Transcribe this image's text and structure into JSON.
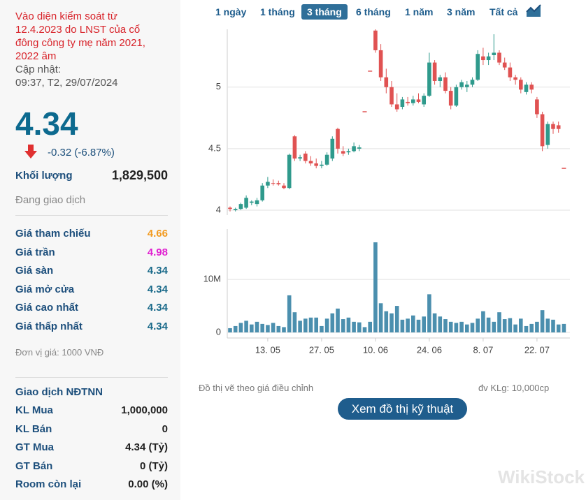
{
  "notice": "Vào diện kiểm soát từ 12.4.2023 do LNST của cổ đông công ty mẹ năm 2021, 2022 âm",
  "updated_label": "Cập nhật:",
  "updated_time": "09:37, T2, 29/07/2024",
  "price": "4.34",
  "change": "-0.32 (-6.87%)",
  "volume_label": "Khối lượng",
  "volume": "1,829,500",
  "status": "Đang giao dịch",
  "prices": [
    {
      "label": "Giá tham chiếu",
      "value": "4.66",
      "color": "#f29a1f"
    },
    {
      "label": "Giá trần",
      "value": "4.98",
      "color": "#e020d0"
    },
    {
      "label": "Giá sàn",
      "value": "4.34",
      "color": "#1a6a8a"
    },
    {
      "label": "Giá mở cửa",
      "value": "4.34",
      "color": "#1a6a8a"
    },
    {
      "label": "Giá cao nhất",
      "value": "4.34",
      "color": "#1a6a8a"
    },
    {
      "label": "Giá thấp nhất",
      "value": "4.34",
      "color": "#1a6a8a"
    }
  ],
  "unit_note": "Đơn vị giá: 1000 VNĐ",
  "foreign": {
    "title": "Giao dịch NĐTNN",
    "rows": [
      {
        "label": "KL Mua",
        "value": "1,000,000"
      },
      {
        "label": "KL Bán",
        "value": "0"
      },
      {
        "label": "GT Mua",
        "value": "4.34 (Tỷ)"
      },
      {
        "label": "GT Bán",
        "value": "0 (Tỷ)"
      },
      {
        "label": "Room còn lại",
        "value": "0.00 (%)"
      }
    ]
  },
  "tabs": {
    "items": [
      "1 ngày",
      "1 tháng",
      "3 tháng",
      "6 tháng",
      "1 năm",
      "3 năm",
      "Tất cả"
    ],
    "active": 2
  },
  "chart_data": {
    "type": "candlestick",
    "categories": [
      null,
      null,
      null,
      null,
      null,
      null,
      null,
      "13. 05",
      null,
      null,
      null,
      null,
      null,
      null,
      null,
      null,
      null,
      "27. 05",
      null,
      null,
      null,
      null,
      null,
      null,
      null,
      null,
      null,
      "10. 06",
      null,
      null,
      null,
      null,
      null,
      null,
      null,
      null,
      null,
      "24. 06",
      null,
      null,
      null,
      null,
      null,
      null,
      null,
      null,
      null,
      "8. 07",
      null,
      null,
      null,
      null,
      null,
      null,
      null,
      null,
      null,
      "22. 07",
      null,
      null,
      null,
      null,
      null
    ],
    "open": [
      4.02,
      4.0,
      4.01,
      4.02,
      4.06,
      4.05,
      4.08,
      4.2,
      4.22,
      4.22,
      4.2,
      4.18,
      4.6,
      4.42,
      4.46,
      4.4,
      4.38,
      4.36,
      4.37,
      4.42,
      4.66,
      4.48,
      4.47,
      4.48,
      4.5,
      4.8,
      5.13,
      5.46,
      5.3,
      5.08,
      5.0,
      4.86,
      4.84,
      4.88,
      4.87,
      4.9,
      4.86,
      4.93,
      5.2,
      5.05,
      5.08,
      4.97,
      4.85,
      5.0,
      5.0,
      5.02,
      5.06,
      5.25,
      5.22,
      5.26,
      5.28,
      5.2,
      5.16,
      5.08,
      5.06,
      4.96,
      5.02,
      4.9,
      4.78,
      4.53,
      4.7,
      4.69,
      4.34
    ],
    "high": [
      4.03,
      4.02,
      4.06,
      4.12,
      4.08,
      4.1,
      4.22,
      4.27,
      4.25,
      4.24,
      4.22,
      4.46,
      4.61,
      4.45,
      4.48,
      4.44,
      4.42,
      4.4,
      4.47,
      4.6,
      4.67,
      4.52,
      4.5,
      4.55,
      4.53,
      4.8,
      5.13,
      5.47,
      5.35,
      5.15,
      5.05,
      4.95,
      4.92,
      4.92,
      4.93,
      4.95,
      4.95,
      5.28,
      5.22,
      5.1,
      5.12,
      5.0,
      5.02,
      5.06,
      5.05,
      5.08,
      5.3,
      5.32,
      5.28,
      5.43,
      5.3,
      5.24,
      5.2,
      5.1,
      5.08,
      5.04,
      5.04,
      4.92,
      4.8,
      4.72,
      4.72,
      4.72,
      4.34
    ],
    "low": [
      3.99,
      3.99,
      4.0,
      4.01,
      4.04,
      4.03,
      4.07,
      4.18,
      4.2,
      4.2,
      4.17,
      4.17,
      4.4,
      4.4,
      4.38,
      4.36,
      4.34,
      4.34,
      4.36,
      4.4,
      4.46,
      4.44,
      4.45,
      4.47,
      4.48,
      4.8,
      5.13,
      5.28,
      5.05,
      4.95,
      4.84,
      4.8,
      4.82,
      4.85,
      4.85,
      4.87,
      4.84,
      4.92,
      5.02,
      5.0,
      4.95,
      4.82,
      4.84,
      4.98,
      4.96,
      5.0,
      5.05,
      5.18,
      5.18,
      5.22,
      5.18,
      5.14,
      5.05,
      5.02,
      4.95,
      4.94,
      4.95,
      4.75,
      4.48,
      4.5,
      4.62,
      4.63,
      4.34
    ],
    "close": [
      4.01,
      4.01,
      4.05,
      4.1,
      4.07,
      4.08,
      4.2,
      4.23,
      4.22,
      4.21,
      4.18,
      4.45,
      4.42,
      4.43,
      4.4,
      4.38,
      4.36,
      4.37,
      4.45,
      4.58,
      4.5,
      4.46,
      4.48,
      4.52,
      4.51,
      4.8,
      5.13,
      5.3,
      5.08,
      5.0,
      4.86,
      4.82,
      4.9,
      4.87,
      4.9,
      4.88,
      4.93,
      5.2,
      5.05,
      5.08,
      4.97,
      4.85,
      5.0,
      5.04,
      5.02,
      5.06,
      5.27,
      5.22,
      5.25,
      5.28,
      5.2,
      5.16,
      5.08,
      5.06,
      4.98,
      5.02,
      4.98,
      4.78,
      4.52,
      4.7,
      4.66,
      4.66,
      4.34
    ],
    "volume": [
      0.8,
      1.2,
      1.8,
      2.2,
      1.5,
      2.0,
      1.6,
      1.4,
      1.8,
      1.2,
      1.0,
      7.0,
      3.8,
      2.2,
      2.6,
      2.8,
      2.8,
      1.2,
      2.6,
      3.6,
      4.5,
      2.5,
      2.8,
      2.0,
      1.9,
      1.0,
      2.0,
      17.0,
      5.5,
      4.0,
      3.6,
      5.0,
      2.4,
      2.6,
      3.2,
      2.4,
      3.0,
      7.2,
      3.6,
      3.0,
      2.5,
      2.0,
      1.8,
      2.0,
      1.5,
      1.8,
      2.6,
      4.0,
      2.8,
      2.0,
      3.8,
      2.5,
      2.7,
      1.5,
      2.6,
      1.2,
      1.6,
      2.0,
      4.2,
      2.6,
      2.4,
      1.5,
      1.6
    ],
    "ylim": [
      3.96,
      5.47
    ],
    "yticks": [
      4,
      4.5,
      5
    ],
    "y2lim": [
      -1.05,
      19.5
    ],
    "y2ticks": [
      0,
      {
        "value": 10,
        "label": "10M"
      }
    ],
    "up_color": "#2f9a8c",
    "down_color": "#e05252",
    "volume_color": "#4b8fae",
    "grid": true
  },
  "chart_note": "Đồ thị vẽ theo giá điều chỉnh",
  "volume_unit": "đv KLg: 10,000cp",
  "button": "Xem đồ thị kỹ thuật",
  "watermark": "WikiStock"
}
